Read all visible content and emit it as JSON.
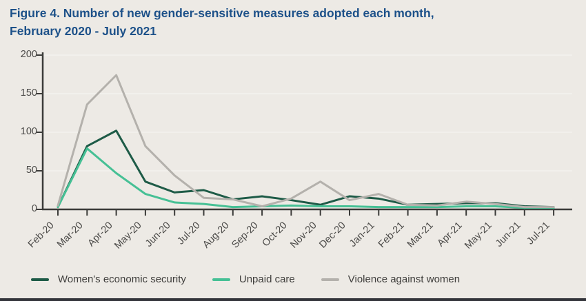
{
  "title": {
    "line1": "Figure 4. Number of new gender-sensitive measures adopted each month,",
    "line2": "February 2020 - July 2021"
  },
  "colors": {
    "background": "#edeae5",
    "title_text": "#1d5189",
    "axis": "#3b3b39",
    "tick_label": "#4b4a48",
    "gridline": "#f4f2ee",
    "legend_text": "#3e3d3b",
    "bottom_bar": "#33343a"
  },
  "chart_data": {
    "type": "line",
    "categories": [
      "Feb-20",
      "Mar-20",
      "Apr-20",
      "May-20",
      "Jun-20",
      "Jul-20",
      "Aug-20",
      "Sep-20",
      "Oct-20",
      "Nov-20",
      "Dec-20",
      "Jan-21",
      "Feb-21",
      "Mar-21",
      "Apr-21",
      "May-21",
      "Jun-21",
      "Jul-21"
    ],
    "series": [
      {
        "name": "Women's economic security",
        "color": "#1e5b47",
        "values": [
          3,
          82,
          102,
          36,
          22,
          25,
          13,
          17,
          12,
          6,
          17,
          14,
          6,
          7,
          8,
          8,
          4,
          3
        ]
      },
      {
        "name": "Unpaid care",
        "color": "#46c095",
        "values": [
          3,
          79,
          47,
          20,
          9,
          7,
          3,
          4,
          5,
          4,
          4,
          3,
          3,
          3,
          4,
          4,
          2,
          2
        ]
      },
      {
        "name": "Violence against women",
        "color": "#b4b1ac",
        "values": [
          5,
          136,
          174,
          82,
          44,
          15,
          13,
          4,
          14,
          36,
          12,
          20,
          6,
          5,
          10,
          7,
          3,
          3
        ]
      }
    ],
    "title": "Figure 4. Number of new gender-sensitive measures adopted each month, February 2020 - July 2021",
    "xlabel": "",
    "ylabel": "",
    "ylim": [
      0,
      200
    ],
    "yticks": [
      0,
      50,
      100,
      150,
      200
    ],
    "grid": "horizontal",
    "legend_position": "bottom"
  }
}
